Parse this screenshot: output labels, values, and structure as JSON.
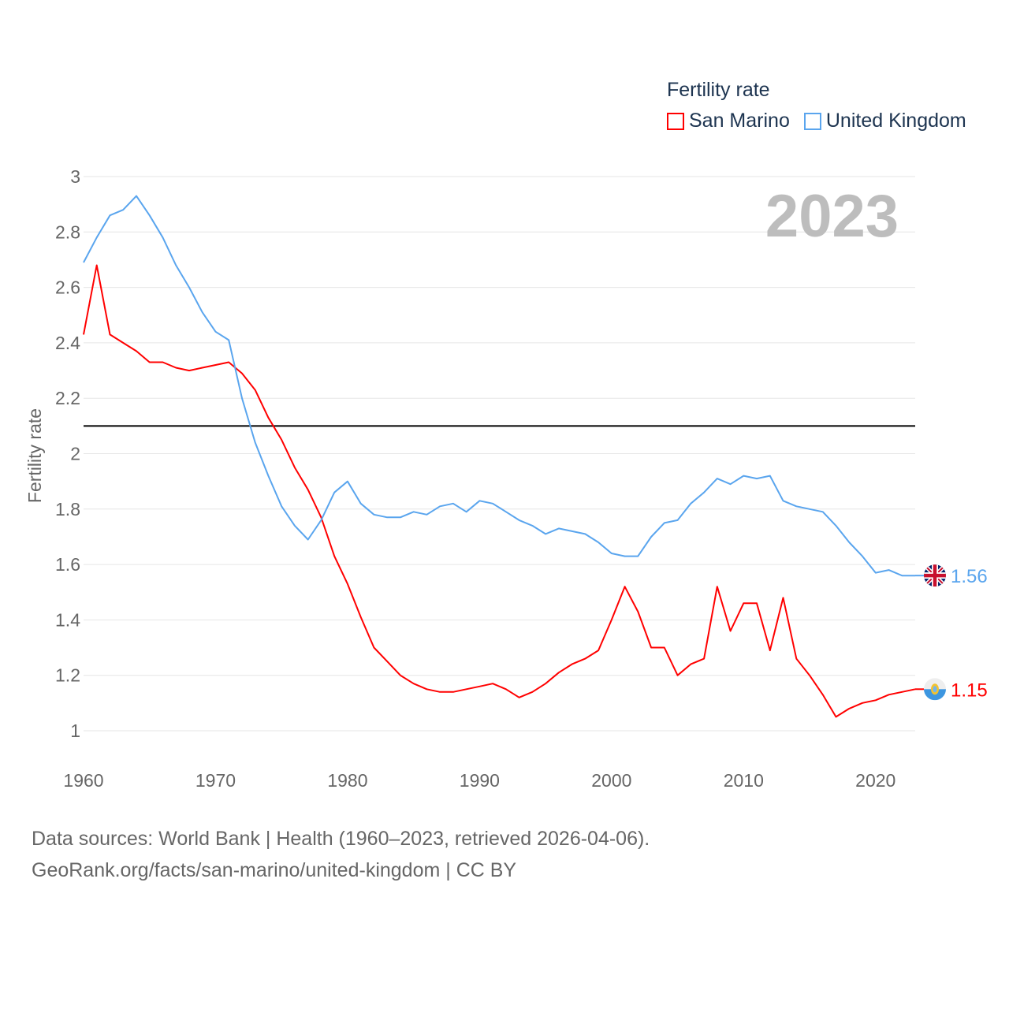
{
  "chart_data": {
    "type": "line",
    "title": "Fertility rate",
    "ylabel": "Fertility rate",
    "xlabel": "",
    "year_label": "2023",
    "xlim": [
      1960,
      2023
    ],
    "ylim": [
      0.9,
      3.0
    ],
    "x_ticks": [
      "1960",
      "1970",
      "1980",
      "1990",
      "2000",
      "2010",
      "2020"
    ],
    "y_ticks": [
      "1",
      "1.2",
      "1.4",
      "1.6",
      "1.8",
      "2",
      "2.2",
      "2.4",
      "2.6",
      "2.8",
      "3"
    ],
    "grid": true,
    "legend_placement": "top-right",
    "reference_line": 2.1,
    "x": [
      1960,
      1961,
      1962,
      1963,
      1964,
      1965,
      1966,
      1967,
      1968,
      1969,
      1970,
      1971,
      1972,
      1973,
      1974,
      1975,
      1976,
      1977,
      1978,
      1979,
      1980,
      1981,
      1982,
      1983,
      1984,
      1985,
      1986,
      1987,
      1988,
      1989,
      1990,
      1991,
      1992,
      1993,
      1994,
      1995,
      1996,
      1997,
      1998,
      1999,
      2000,
      2001,
      2002,
      2003,
      2004,
      2005,
      2006,
      2007,
      2008,
      2009,
      2010,
      2011,
      2012,
      2013,
      2014,
      2015,
      2016,
      2017,
      2018,
      2019,
      2020,
      2021,
      2022,
      2023
    ],
    "series": [
      {
        "name": "San Marino",
        "color": "#ff0000",
        "end_label": "1.15",
        "flag": "san-marino",
        "values": [
          2.43,
          2.68,
          2.43,
          2.4,
          2.37,
          2.33,
          2.33,
          2.31,
          2.3,
          2.31,
          2.32,
          2.33,
          2.29,
          2.23,
          2.13,
          2.05,
          1.95,
          1.87,
          1.77,
          1.63,
          1.53,
          1.41,
          1.3,
          1.25,
          1.2,
          1.17,
          1.15,
          1.14,
          1.14,
          1.15,
          1.16,
          1.17,
          1.15,
          1.12,
          1.14,
          1.17,
          1.21,
          1.24,
          1.26,
          1.29,
          1.4,
          1.52,
          1.43,
          1.3,
          1.3,
          1.2,
          1.24,
          1.26,
          1.52,
          1.36,
          1.46,
          1.46,
          1.29,
          1.48,
          1.26,
          1.2,
          1.13,
          1.05,
          1.08,
          1.1,
          1.11,
          1.13,
          1.14,
          1.15
        ]
      },
      {
        "name": "United Kingdom",
        "color": "#5aa5ee",
        "end_label": "1.56",
        "flag": "united-kingdom",
        "values": [
          2.69,
          2.78,
          2.86,
          2.88,
          2.93,
          2.86,
          2.78,
          2.68,
          2.6,
          2.51,
          2.44,
          2.41,
          2.2,
          2.04,
          1.92,
          1.81,
          1.74,
          1.69,
          1.76,
          1.86,
          1.9,
          1.82,
          1.78,
          1.77,
          1.77,
          1.79,
          1.78,
          1.81,
          1.82,
          1.79,
          1.83,
          1.82,
          1.79,
          1.76,
          1.74,
          1.71,
          1.73,
          1.72,
          1.71,
          1.68,
          1.64,
          1.63,
          1.63,
          1.7,
          1.75,
          1.76,
          1.82,
          1.86,
          1.91,
          1.89,
          1.92,
          1.91,
          1.92,
          1.83,
          1.81,
          1.8,
          1.79,
          1.74,
          1.68,
          1.63,
          1.57,
          1.58,
          1.56,
          1.56
        ]
      }
    ]
  },
  "footer": {
    "line1": "Data sources: World Bank | Health (1960–2023, retrieved 2026-04-06).",
    "line2": "GeoRank.org/facts/san-marino/united-kingdom | CC BY"
  }
}
